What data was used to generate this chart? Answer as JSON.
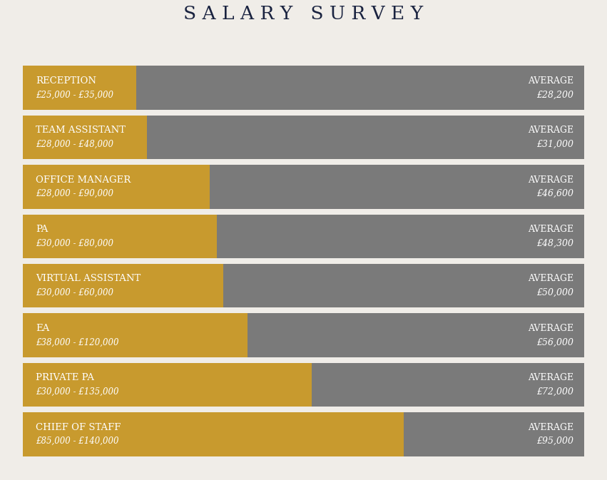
{
  "title": "SALARY SURVEY",
  "background_color": "#f0ede8",
  "bar_color": "#C89A2E",
  "avg_color": "#7a7a7a",
  "title_color": "#1a2340",
  "text_color": "#ffffff",
  "max_value": 140000,
  "rows": [
    {
      "label": "RECEPTION",
      "range": "£25,000 - £35,000",
      "avg": 28200
    },
    {
      "label": "TEAM ASSISTANT",
      "range": "£28,000 - £48,000",
      "avg": 31000
    },
    {
      "label": "OFFICE MANAGER",
      "range": "£28,000 - £90,000",
      "avg": 46600
    },
    {
      "label": "PA",
      "range": "£30,000 - £80,000",
      "avg": 48300
    },
    {
      "label": "VIRTUAL ASSISTANT",
      "range": "£30,000 - £60,000",
      "avg": 50000
    },
    {
      "label": "EA",
      "range": "£38,000 - £120,000",
      "avg": 56000
    },
    {
      "label": "PRIVATE PA",
      "range": "£30,000 - £135,000",
      "avg": 72000
    },
    {
      "label": "CHIEF OF STAFF",
      "range": "£85,000 - £140,000",
      "avg": 95000
    }
  ]
}
